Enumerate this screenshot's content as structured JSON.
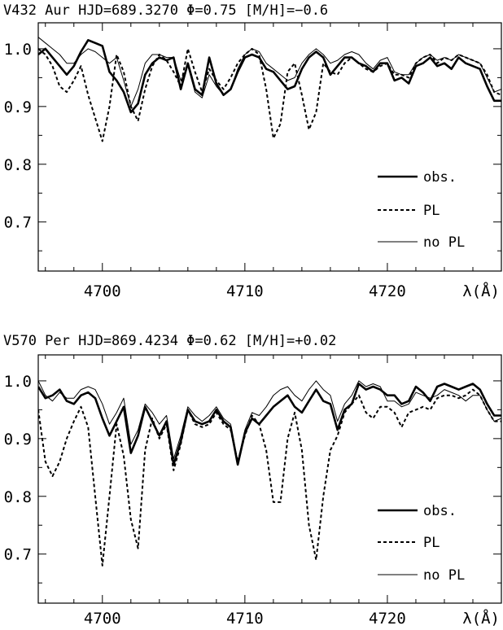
{
  "chart_data": [
    {
      "type": "line",
      "title": "V432 Aur    HJD=689.3270  Φ=0.75  [M/H]=−0.6",
      "xlabel": "λ(Å)",
      "ylabel": "",
      "xlim": [
        4695.5,
        4728.0
      ],
      "ylim": [
        0.615,
        1.045
      ],
      "xticks": [
        4700,
        4710,
        4720
      ],
      "xtick_labels": [
        "4700",
        "4710",
        "4720"
      ],
      "yticks": [
        0.7,
        0.8,
        0.9,
        1.0
      ],
      "ytick_labels": [
        "0.7",
        "0.8",
        "0.9",
        "1.0"
      ],
      "legend_position": "lower-right",
      "series": [
        {
          "name": "obs.",
          "style": "thick-solid",
          "x": [
            4695.5,
            4696.0,
            4696.5,
            4697.0,
            4697.5,
            4698.0,
            4698.5,
            4699.0,
            4699.5,
            4700.0,
            4700.5,
            4701.0,
            4701.5,
            4702.0,
            4702.5,
            4703.0,
            4703.5,
            4704.0,
            4704.5,
            4705.0,
            4705.5,
            4706.0,
            4706.5,
            4707.0,
            4707.5,
            4708.0,
            4708.5,
            4709.0,
            4709.5,
            4710.0,
            4710.5,
            4711.0,
            4711.5,
            4712.0,
            4712.5,
            4713.0,
            4713.5,
            4714.0,
            4714.5,
            4715.0,
            4715.5,
            4716.0,
            4716.5,
            4717.0,
            4717.5,
            4718.0,
            4718.5,
            4719.0,
            4719.5,
            4720.0,
            4720.5,
            4721.0,
            4721.5,
            4722.0,
            4722.5,
            4723.0,
            4723.5,
            4724.0,
            4724.5,
            4725.0,
            4725.5,
            4726.0,
            4726.5,
            4727.0,
            4727.5,
            4728.0
          ],
          "y": [
            0.99,
            1.0,
            0.985,
            0.97,
            0.955,
            0.97,
            0.995,
            1.015,
            1.01,
            1.005,
            0.96,
            0.945,
            0.925,
            0.89,
            0.905,
            0.955,
            0.975,
            0.985,
            0.98,
            0.985,
            0.93,
            0.975,
            0.93,
            0.92,
            0.985,
            0.94,
            0.92,
            0.93,
            0.96,
            0.985,
            0.99,
            0.985,
            0.965,
            0.96,
            0.945,
            0.93,
            0.935,
            0.965,
            0.985,
            0.995,
            0.985,
            0.955,
            0.97,
            0.985,
            0.985,
            0.975,
            0.97,
            0.96,
            0.975,
            0.975,
            0.945,
            0.95,
            0.94,
            0.97,
            0.975,
            0.985,
            0.97,
            0.975,
            0.965,
            0.985,
            0.975,
            0.97,
            0.965,
            0.935,
            0.91,
            0.91
          ]
        },
        {
          "name": "PL",
          "style": "dashed",
          "x": [
            4695.5,
            4696.0,
            4696.5,
            4697.0,
            4697.5,
            4698.0,
            4698.5,
            4699.0,
            4699.5,
            4700.0,
            4700.5,
            4701.0,
            4701.5,
            4702.0,
            4702.5,
            4703.0,
            4703.5,
            4704.0,
            4704.5,
            4705.0,
            4705.5,
            4706.0,
            4706.5,
            4707.0,
            4707.5,
            4708.0,
            4708.5,
            4709.0,
            4709.5,
            4710.0,
            4710.5,
            4711.0,
            4711.5,
            4712.0,
            4712.5,
            4713.0,
            4713.5,
            4714.0,
            4714.5,
            4715.0,
            4715.5,
            4716.0,
            4716.5,
            4717.0,
            4717.5,
            4718.0,
            4718.5,
            4719.0,
            4719.5,
            4720.0,
            4720.5,
            4721.0,
            4721.5,
            4722.0,
            4722.5,
            4723.0,
            4723.5,
            4724.0,
            4724.5,
            4725.0,
            4725.5,
            4726.0,
            4726.5,
            4727.0,
            4727.5,
            4728.0
          ],
          "y": [
            1.0,
            0.99,
            0.97,
            0.935,
            0.925,
            0.945,
            0.97,
            0.92,
            0.88,
            0.84,
            0.9,
            0.99,
            0.96,
            0.9,
            0.875,
            0.93,
            0.97,
            0.99,
            0.98,
            0.96,
            0.935,
            1.0,
            0.96,
            0.925,
            0.965,
            0.945,
            0.93,
            0.95,
            0.975,
            0.99,
            1.0,
            0.99,
            0.93,
            0.845,
            0.87,
            0.96,
            0.975,
            0.92,
            0.86,
            0.89,
            0.975,
            0.96,
            0.955,
            0.975,
            0.985,
            0.975,
            0.965,
            0.96,
            0.97,
            0.975,
            0.955,
            0.955,
            0.95,
            0.975,
            0.985,
            0.99,
            0.975,
            0.985,
            0.98,
            0.99,
            0.985,
            0.98,
            0.975,
            0.955,
            0.925,
            0.92
          ]
        },
        {
          "name": "no PL",
          "style": "thin-solid",
          "x": [
            4695.5,
            4696.0,
            4696.5,
            4697.0,
            4697.5,
            4698.0,
            4698.5,
            4699.0,
            4699.5,
            4700.0,
            4700.5,
            4701.0,
            4701.5,
            4702.0,
            4702.5,
            4703.0,
            4703.5,
            4704.0,
            4704.5,
            4705.0,
            4705.5,
            4706.0,
            4706.5,
            4707.0,
            4707.5,
            4708.0,
            4708.5,
            4709.0,
            4709.5,
            4710.0,
            4710.5,
            4711.0,
            4711.5,
            4712.0,
            4712.5,
            4713.0,
            4713.5,
            4714.0,
            4714.5,
            4715.0,
            4715.5,
            4716.0,
            4716.5,
            4717.0,
            4717.5,
            4718.0,
            4718.5,
            4719.0,
            4719.5,
            4720.0,
            4720.5,
            4721.0,
            4721.5,
            4722.0,
            4722.5,
            4723.0,
            4723.5,
            4724.0,
            4724.5,
            4725.0,
            4725.5,
            4726.0,
            4726.5,
            4727.0,
            4727.5,
            4728.0
          ],
          "y": [
            1.02,
            1.01,
            1.0,
            0.99,
            0.975,
            0.975,
            0.99,
            1.0,
            0.995,
            0.985,
            0.975,
            0.985,
            0.945,
            0.9,
            0.93,
            0.975,
            0.99,
            0.99,
            0.985,
            0.985,
            0.945,
            0.97,
            0.925,
            0.915,
            0.955,
            0.935,
            0.92,
            0.93,
            0.965,
            0.99,
            1.0,
            0.995,
            0.975,
            0.965,
            0.955,
            0.945,
            0.95,
            0.975,
            0.99,
            1.0,
            0.99,
            0.975,
            0.98,
            0.99,
            0.995,
            0.99,
            0.975,
            0.965,
            0.98,
            0.985,
            0.96,
            0.955,
            0.955,
            0.975,
            0.985,
            0.99,
            0.98,
            0.985,
            0.98,
            0.99,
            0.985,
            0.98,
            0.975,
            0.95,
            0.925,
            0.93
          ]
        }
      ]
    },
    {
      "type": "line",
      "title": "V570 Per    HJD=869.4234  Φ=0.62  [M/H]=+0.02",
      "xlabel": "λ(Å)",
      "ylabel": "",
      "xlim": [
        4695.5,
        4728.0
      ],
      "ylim": [
        0.615,
        1.045
      ],
      "xticks": [
        4700,
        4710,
        4720
      ],
      "xtick_labels": [
        "4700",
        "4710",
        "4720"
      ],
      "yticks": [
        0.7,
        0.8,
        0.9,
        1.0
      ],
      "ytick_labels": [
        "0.7",
        "0.8",
        "0.9",
        "1.0"
      ],
      "legend_position": "lower-right",
      "series": [
        {
          "name": "obs.",
          "style": "thick-solid",
          "x": [
            4695.5,
            4696.0,
            4696.5,
            4697.0,
            4697.5,
            4698.0,
            4698.5,
            4699.0,
            4699.5,
            4700.0,
            4700.5,
            4701.0,
            4701.5,
            4702.0,
            4702.5,
            4703.0,
            4703.5,
            4704.0,
            4704.5,
            4705.0,
            4705.5,
            4706.0,
            4706.5,
            4707.0,
            4707.5,
            4708.0,
            4708.5,
            4709.0,
            4709.5,
            4710.0,
            4710.5,
            4711.0,
            4711.5,
            4712.0,
            4712.5,
            4713.0,
            4713.5,
            4714.0,
            4714.5,
            4715.0,
            4715.5,
            4716.0,
            4716.5,
            4717.0,
            4717.5,
            4718.0,
            4718.5,
            4719.0,
            4719.5,
            4720.0,
            4720.5,
            4721.0,
            4721.5,
            4722.0,
            4722.5,
            4723.0,
            4723.5,
            4724.0,
            4724.5,
            4725.0,
            4725.5,
            4726.0,
            4726.5,
            4727.0,
            4727.5,
            4728.0
          ],
          "y": [
            0.99,
            0.97,
            0.975,
            0.985,
            0.965,
            0.96,
            0.975,
            0.98,
            0.97,
            0.935,
            0.905,
            0.93,
            0.955,
            0.875,
            0.905,
            0.955,
            0.93,
            0.905,
            0.93,
            0.855,
            0.895,
            0.95,
            0.93,
            0.925,
            0.93,
            0.95,
            0.93,
            0.92,
            0.855,
            0.91,
            0.935,
            0.925,
            0.94,
            0.955,
            0.965,
            0.975,
            0.955,
            0.945,
            0.965,
            0.985,
            0.965,
            0.96,
            0.915,
            0.95,
            0.96,
            0.995,
            0.985,
            0.99,
            0.985,
            0.975,
            0.975,
            0.96,
            0.965,
            0.99,
            0.98,
            0.965,
            0.99,
            0.995,
            0.99,
            0.985,
            0.99,
            0.995,
            0.985,
            0.96,
            0.94,
            0.94
          ]
        },
        {
          "name": "PL",
          "style": "dashed",
          "x": [
            4695.5,
            4696.0,
            4696.5,
            4697.0,
            4697.5,
            4698.0,
            4698.5,
            4699.0,
            4699.5,
            4700.0,
            4700.5,
            4701.0,
            4701.5,
            4702.0,
            4702.5,
            4703.0,
            4703.5,
            4704.0,
            4704.5,
            4705.0,
            4705.5,
            4706.0,
            4706.5,
            4707.0,
            4707.5,
            4708.0,
            4708.5,
            4709.0,
            4709.5,
            4710.0,
            4710.5,
            4711.0,
            4711.5,
            4712.0,
            4712.5,
            4713.0,
            4713.5,
            4714.0,
            4714.5,
            4715.0,
            4715.5,
            4716.0,
            4716.5,
            4717.0,
            4717.5,
            4718.0,
            4718.5,
            4719.0,
            4719.5,
            4720.0,
            4720.5,
            4721.0,
            4721.5,
            4722.0,
            4722.5,
            4723.0,
            4723.5,
            4724.0,
            4724.5,
            4725.0,
            4725.5,
            4726.0,
            4726.5,
            4727.0,
            4727.5,
            4728.0
          ],
          "y": [
            0.95,
            0.86,
            0.835,
            0.86,
            0.9,
            0.93,
            0.955,
            0.92,
            0.8,
            0.68,
            0.8,
            0.925,
            0.87,
            0.76,
            0.71,
            0.88,
            0.935,
            0.9,
            0.925,
            0.845,
            0.89,
            0.95,
            0.925,
            0.92,
            0.925,
            0.945,
            0.925,
            0.915,
            0.86,
            0.905,
            0.94,
            0.925,
            0.88,
            0.79,
            0.79,
            0.9,
            0.945,
            0.88,
            0.75,
            0.69,
            0.8,
            0.88,
            0.905,
            0.945,
            0.96,
            0.975,
            0.945,
            0.935,
            0.955,
            0.955,
            0.945,
            0.92,
            0.945,
            0.95,
            0.955,
            0.95,
            0.97,
            0.975,
            0.975,
            0.97,
            0.975,
            0.985,
            0.975,
            0.95,
            0.93,
            0.93
          ]
        },
        {
          "name": "no PL",
          "style": "thin-solid",
          "x": [
            4695.5,
            4696.0,
            4696.5,
            4697.0,
            4697.5,
            4698.0,
            4698.5,
            4699.0,
            4699.5,
            4700.0,
            4700.5,
            4701.0,
            4701.5,
            4702.0,
            4702.5,
            4703.0,
            4703.5,
            4704.0,
            4704.5,
            4705.0,
            4705.5,
            4706.0,
            4706.5,
            4707.0,
            4707.5,
            4708.0,
            4708.5,
            4709.0,
            4709.5,
            4710.0,
            4710.5,
            4711.0,
            4711.5,
            4712.0,
            4712.5,
            4713.0,
            4713.5,
            4714.0,
            4714.5,
            4715.0,
            4715.5,
            4716.0,
            4716.5,
            4717.0,
            4717.5,
            4718.0,
            4718.5,
            4719.0,
            4719.5,
            4720.0,
            4720.5,
            4721.0,
            4721.5,
            4722.0,
            4722.5,
            4723.0,
            4723.5,
            4724.0,
            4724.5,
            4725.0,
            4725.5,
            4726.0,
            4726.5,
            4727.0,
            4727.5,
            4728.0
          ],
          "y": [
            1.0,
            0.975,
            0.965,
            0.98,
            0.97,
            0.97,
            0.985,
            0.99,
            0.985,
            0.96,
            0.925,
            0.945,
            0.97,
            0.89,
            0.915,
            0.96,
            0.945,
            0.925,
            0.94,
            0.865,
            0.905,
            0.955,
            0.94,
            0.93,
            0.94,
            0.955,
            0.935,
            0.925,
            0.86,
            0.915,
            0.945,
            0.94,
            0.955,
            0.975,
            0.985,
            0.99,
            0.975,
            0.965,
            0.985,
            1.0,
            0.985,
            0.975,
            0.93,
            0.96,
            0.975,
            1.0,
            0.99,
            0.995,
            0.99,
            0.965,
            0.965,
            0.955,
            0.96,
            0.98,
            0.975,
            0.97,
            0.975,
            0.985,
            0.98,
            0.975,
            0.965,
            0.975,
            0.975,
            0.95,
            0.93,
            0.935
          ]
        }
      ]
    }
  ]
}
